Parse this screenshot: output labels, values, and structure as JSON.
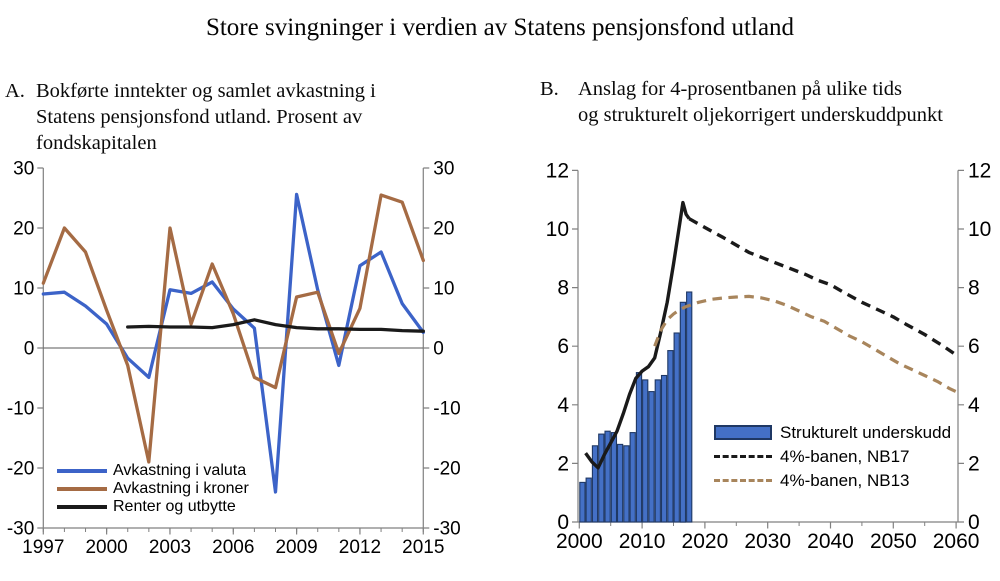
{
  "title": "Store svingninger i verdien av Statens pensjonsfond utland",
  "panels": {
    "a": {
      "label": "A.",
      "lines": [
        "Bokførte inntekter og samlet avkastning i",
        "Statens pensjonsfond utland. Prosent av",
        "fondskapitalen"
      ]
    },
    "b": {
      "label": "B.",
      "lines": [
        "Anslag for 4-prosentbanen  på ulike tids",
        "og strukturelt oljekorrigert underskuddpunkt"
      ]
    }
  },
  "colors": {
    "frame": "#808080",
    "zero_line": "#595959",
    "valuta_blue": "#3C63C8",
    "kroner_brown": "#A56B44",
    "black_line": "#1a1a1a",
    "bar_fill": "#4470C6",
    "bar_edge": "#1F3864",
    "nb13_brown": "#A8855C"
  },
  "chart_data": [
    {
      "id": "A",
      "type": "line",
      "x": [
        1997,
        1998,
        1999,
        2000,
        2001,
        2002,
        2003,
        2004,
        2005,
        2006,
        2007,
        2008,
        2009,
        2010,
        2011,
        2012,
        2013,
        2014,
        2015
      ],
      "series": [
        {
          "name": "Avkastning i valuta",
          "color": "#3C63C8",
          "values": [
            9.0,
            9.3,
            7.0,
            4.0,
            -1.7,
            -4.9,
            9.7,
            9.1,
            11.0,
            6.5,
            3.3,
            -24.0,
            25.6,
            9.7,
            -2.9,
            13.7,
            16.0,
            7.4,
            2.6
          ]
        },
        {
          "name": "Avkastning i kroner",
          "color": "#A56B44",
          "values": [
            10.8,
            20.0,
            16.0,
            6.3,
            -2.9,
            -19.0,
            20.0,
            4.0,
            14.0,
            5.7,
            -4.9,
            -6.6,
            8.5,
            9.3,
            -0.9,
            6.6,
            25.5,
            24.3,
            14.6
          ]
        },
        {
          "name": "Renter og utbytte",
          "color": "#1a1a1a",
          "values": [
            null,
            null,
            null,
            null,
            3.5,
            3.6,
            3.5,
            3.5,
            3.4,
            3.9,
            4.7,
            3.9,
            3.4,
            3.2,
            3.2,
            3.1,
            3.1,
            2.9,
            2.8
          ]
        }
      ],
      "ylim": [
        -30,
        30
      ],
      "yticks": [
        -30,
        -20,
        -10,
        0,
        10,
        20,
        30
      ],
      "xticks": [
        1997,
        2000,
        2003,
        2006,
        2009,
        2012,
        2015
      ],
      "x_minor_step": 1,
      "grid": false,
      "legend_position": "bottom-left"
    },
    {
      "id": "B",
      "type": "bar+line",
      "bars": {
        "name": "Strukturelt underskudd",
        "fill": "#4470C6",
        "edge": "#1F3864",
        "categories": [
          2000,
          2001,
          2002,
          2003,
          2004,
          2005,
          2006,
          2007,
          2008,
          2009,
          2010,
          2011,
          2012,
          2013,
          2014,
          2015,
          2016,
          2017
        ],
        "values": [
          1.35,
          1.5,
          2.6,
          3.0,
          3.1,
          3.05,
          2.65,
          2.6,
          3.05,
          5.1,
          4.85,
          4.45,
          4.85,
          5.0,
          5.85,
          6.45,
          7.5,
          7.85
        ]
      },
      "lines": [
        {
          "name": "4%-banen, NB17",
          "color": "#1a1a1a",
          "solid_points": [
            [
              2001,
              2.35
            ],
            [
              2002,
              2.05
            ],
            [
              2003,
              1.85
            ],
            [
              2004,
              2.3
            ],
            [
              2005,
              2.7
            ],
            [
              2006,
              3.1
            ],
            [
              2007,
              3.7
            ],
            [
              2008,
              4.35
            ],
            [
              2009,
              4.9
            ],
            [
              2010,
              5.15
            ],
            [
              2011,
              5.3
            ],
            [
              2012,
              5.6
            ],
            [
              2013,
              6.5
            ],
            [
              2014,
              7.5
            ],
            [
              2015,
              8.8
            ],
            [
              2016,
              10.2
            ],
            [
              2016.5,
              10.9
            ],
            [
              2017,
              10.5
            ],
            [
              2017.5,
              10.35
            ]
          ],
          "dashed_points": [
            [
              2017.5,
              10.35
            ],
            [
              2020,
              10.05
            ],
            [
              2023,
              9.7
            ],
            [
              2025,
              9.45
            ],
            [
              2027,
              9.2
            ],
            [
              2030,
              8.95
            ],
            [
              2033,
              8.7
            ],
            [
              2036,
              8.45
            ],
            [
              2038,
              8.25
            ],
            [
              2040,
              8.1
            ],
            [
              2042,
              7.85
            ],
            [
              2045,
              7.5
            ],
            [
              2048,
              7.2
            ],
            [
              2050,
              7.0
            ],
            [
              2052,
              6.75
            ],
            [
              2055,
              6.4
            ],
            [
              2058,
              6.0
            ],
            [
              2060,
              5.7
            ]
          ]
        },
        {
          "name": "4%-banen, NB13",
          "color": "#A8855C",
          "dashed_points": [
            [
              2012,
              6.0
            ],
            [
              2013,
              6.55
            ],
            [
              2014,
              6.9
            ],
            [
              2015,
              7.1
            ],
            [
              2016,
              7.25
            ],
            [
              2017,
              7.35
            ],
            [
              2019,
              7.5
            ],
            [
              2021,
              7.6
            ],
            [
              2023,
              7.65
            ],
            [
              2025,
              7.68
            ],
            [
              2027,
              7.7
            ],
            [
              2029,
              7.65
            ],
            [
              2031,
              7.55
            ],
            [
              2033,
              7.4
            ],
            [
              2035,
              7.2
            ],
            [
              2037,
              7.0
            ],
            [
              2039,
              6.85
            ],
            [
              2041,
              6.6
            ],
            [
              2043,
              6.35
            ],
            [
              2045,
              6.15
            ],
            [
              2047,
              5.9
            ],
            [
              2049,
              5.65
            ],
            [
              2051,
              5.4
            ],
            [
              2053,
              5.2
            ],
            [
              2055,
              5.0
            ],
            [
              2057,
              4.8
            ],
            [
              2059,
              4.55
            ],
            [
              2060,
              4.45
            ]
          ]
        }
      ],
      "ylim": [
        0,
        12
      ],
      "yticks": [
        0,
        2,
        4,
        6,
        8,
        10,
        12
      ],
      "xticks": [
        2000,
        2010,
        2020,
        2030,
        2040,
        2050,
        2060
      ],
      "x_minor_step": 5,
      "grid": false,
      "legend_position": "center-right"
    }
  ]
}
